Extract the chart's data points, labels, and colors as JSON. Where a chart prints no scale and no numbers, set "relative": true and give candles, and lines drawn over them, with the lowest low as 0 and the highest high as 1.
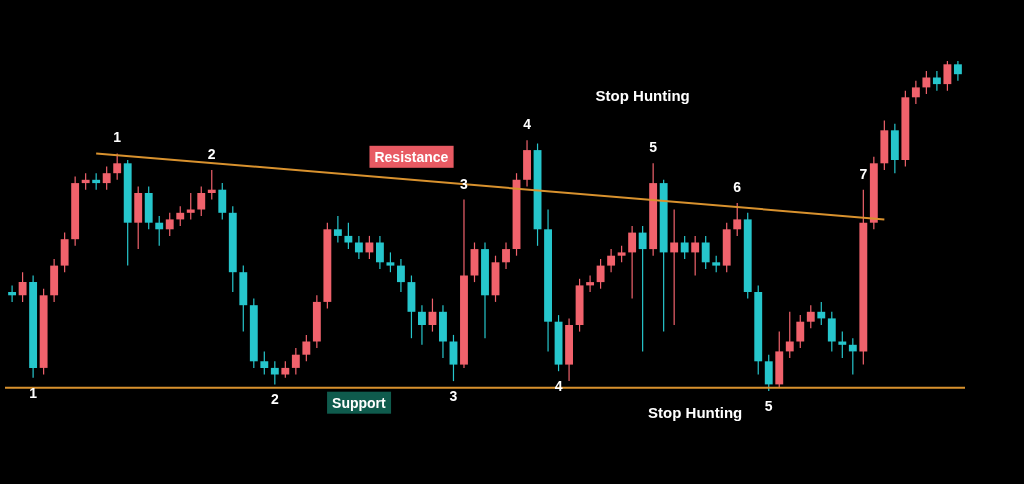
{
  "chart_data": {
    "type": "candlestick",
    "relative": true,
    "categories": [
      null,
      null,
      null,
      null,
      null,
      null,
      null,
      null,
      null,
      null,
      null,
      null,
      null,
      null,
      null,
      null,
      null,
      null,
      null,
      null,
      null,
      null,
      null,
      null,
      null,
      null,
      null,
      null,
      null,
      null,
      null,
      null,
      null,
      null,
      null,
      null,
      null,
      null,
      null,
      null,
      null,
      null,
      null,
      null,
      null,
      null,
      null,
      null,
      null,
      null,
      null,
      null,
      null,
      null,
      null,
      null,
      null,
      null,
      null,
      null,
      null,
      null,
      null,
      null,
      null,
      null,
      null,
      null,
      null,
      null,
      null,
      null,
      null,
      null,
      null,
      null,
      null,
      null,
      null,
      null,
      null,
      null,
      null,
      null,
      null,
      null,
      null,
      null,
      null,
      null,
      null
    ],
    "ohlc": [
      [
        0.3,
        0.32,
        0.27,
        0.29
      ],
      [
        0.29,
        0.36,
        0.27,
        0.33
      ],
      [
        0.33,
        0.35,
        0.04,
        0.07
      ],
      [
        0.07,
        0.31,
        0.05,
        0.29
      ],
      [
        0.29,
        0.4,
        0.27,
        0.38
      ],
      [
        0.38,
        0.48,
        0.36,
        0.46
      ],
      [
        0.46,
        0.65,
        0.44,
        0.63
      ],
      [
        0.63,
        0.66,
        0.61,
        0.64
      ],
      [
        0.64,
        0.66,
        0.61,
        0.63
      ],
      [
        0.63,
        0.68,
        0.61,
        0.66
      ],
      [
        0.66,
        0.72,
        0.64,
        0.69
      ],
      [
        0.69,
        0.7,
        0.38,
        0.51
      ],
      [
        0.51,
        0.62,
        0.43,
        0.6
      ],
      [
        0.6,
        0.62,
        0.49,
        0.51
      ],
      [
        0.51,
        0.53,
        0.44,
        0.49
      ],
      [
        0.49,
        0.54,
        0.47,
        0.52
      ],
      [
        0.52,
        0.56,
        0.5,
        0.54
      ],
      [
        0.54,
        0.6,
        0.52,
        0.55
      ],
      [
        0.55,
        0.62,
        0.53,
        0.6
      ],
      [
        0.6,
        0.67,
        0.58,
        0.61
      ],
      [
        0.61,
        0.63,
        0.52,
        0.54
      ],
      [
        0.54,
        0.56,
        0.3,
        0.36
      ],
      [
        0.36,
        0.38,
        0.18,
        0.26
      ],
      [
        0.26,
        0.28,
        0.07,
        0.09
      ],
      [
        0.09,
        0.12,
        0.05,
        0.07
      ],
      [
        0.07,
        0.09,
        0.02,
        0.05
      ],
      [
        0.05,
        0.09,
        0.04,
        0.07
      ],
      [
        0.07,
        0.13,
        0.05,
        0.11
      ],
      [
        0.11,
        0.17,
        0.09,
        0.15
      ],
      [
        0.15,
        0.29,
        0.13,
        0.27
      ],
      [
        0.27,
        0.51,
        0.25,
        0.49
      ],
      [
        0.49,
        0.53,
        0.45,
        0.47
      ],
      [
        0.47,
        0.51,
        0.43,
        0.45
      ],
      [
        0.45,
        0.47,
        0.4,
        0.42
      ],
      [
        0.42,
        0.47,
        0.4,
        0.45
      ],
      [
        0.45,
        0.47,
        0.37,
        0.39
      ],
      [
        0.39,
        0.42,
        0.36,
        0.38
      ],
      [
        0.38,
        0.4,
        0.3,
        0.33
      ],
      [
        0.33,
        0.35,
        0.16,
        0.24
      ],
      [
        0.24,
        0.26,
        0.14,
        0.2
      ],
      [
        0.2,
        0.28,
        0.18,
        0.24
      ],
      [
        0.24,
        0.26,
        0.1,
        0.15
      ],
      [
        0.15,
        0.17,
        0.03,
        0.08
      ],
      [
        0.08,
        0.58,
        0.07,
        0.35
      ],
      [
        0.35,
        0.45,
        0.33,
        0.43
      ],
      [
        0.43,
        0.45,
        0.16,
        0.29
      ],
      [
        0.29,
        0.41,
        0.27,
        0.39
      ],
      [
        0.39,
        0.45,
        0.37,
        0.43
      ],
      [
        0.43,
        0.66,
        0.41,
        0.64
      ],
      [
        0.64,
        0.76,
        0.62,
        0.73
      ],
      [
        0.73,
        0.75,
        0.44,
        0.49
      ],
      [
        0.49,
        0.55,
        0.12,
        0.21
      ],
      [
        0.21,
        0.23,
        0.06,
        0.08
      ],
      [
        0.08,
        0.22,
        0.03,
        0.2
      ],
      [
        0.2,
        0.34,
        0.18,
        0.32
      ],
      [
        0.32,
        0.35,
        0.3,
        0.33
      ],
      [
        0.33,
        0.4,
        0.31,
        0.38
      ],
      [
        0.38,
        0.43,
        0.36,
        0.41
      ],
      [
        0.41,
        0.44,
        0.39,
        0.42
      ],
      [
        0.42,
        0.5,
        0.28,
        0.48
      ],
      [
        0.48,
        0.5,
        0.12,
        0.43
      ],
      [
        0.43,
        0.69,
        0.41,
        0.63
      ],
      [
        0.63,
        0.64,
        0.18,
        0.42
      ],
      [
        0.42,
        0.55,
        0.2,
        0.45
      ],
      [
        0.45,
        0.47,
        0.4,
        0.42
      ],
      [
        0.42,
        0.47,
        0.35,
        0.45
      ],
      [
        0.45,
        0.47,
        0.37,
        0.39
      ],
      [
        0.39,
        0.41,
        0.36,
        0.38
      ],
      [
        0.38,
        0.51,
        0.36,
        0.49
      ],
      [
        0.49,
        0.57,
        0.47,
        0.52
      ],
      [
        0.52,
        0.54,
        0.28,
        0.3
      ],
      [
        0.3,
        0.32,
        0.05,
        0.09
      ],
      [
        0.09,
        0.11,
        0.0,
        0.02
      ],
      [
        0.02,
        0.18,
        0.01,
        0.12
      ],
      [
        0.12,
        0.24,
        0.1,
        0.15
      ],
      [
        0.15,
        0.23,
        0.13,
        0.21
      ],
      [
        0.21,
        0.26,
        0.19,
        0.24
      ],
      [
        0.24,
        0.27,
        0.2,
        0.22
      ],
      [
        0.22,
        0.24,
        0.12,
        0.15
      ],
      [
        0.15,
        0.18,
        0.1,
        0.14
      ],
      [
        0.14,
        0.16,
        0.05,
        0.12
      ],
      [
        0.12,
        0.61,
        0.08,
        0.51
      ],
      [
        0.51,
        0.71,
        0.49,
        0.69
      ],
      [
        0.69,
        0.82,
        0.67,
        0.79
      ],
      [
        0.79,
        0.81,
        0.66,
        0.7
      ],
      [
        0.7,
        0.91,
        0.68,
        0.89
      ],
      [
        0.89,
        0.94,
        0.87,
        0.92
      ],
      [
        0.92,
        0.97,
        0.9,
        0.95
      ],
      [
        0.95,
        0.97,
        0.91,
        0.93
      ],
      [
        0.93,
        1.0,
        0.91,
        0.99
      ],
      [
        0.99,
        1.0,
        0.94,
        0.96
      ]
    ],
    "series": [
      {
        "type": "line",
        "name": "Resistance",
        "color": "#d9922e",
        "values": [
          null,
          null,
          null,
          null,
          null,
          null,
          null,
          null,
          0.72,
          null,
          null,
          null,
          null,
          null,
          null,
          null,
          null,
          null,
          null,
          null,
          null,
          null,
          null,
          null,
          null,
          null,
          null,
          null,
          null,
          null,
          null,
          null,
          null,
          null,
          null,
          null,
          null,
          null,
          null,
          null,
          null,
          null,
          null,
          null,
          null,
          null,
          null,
          null,
          null,
          null,
          null,
          null,
          null,
          null,
          null,
          null,
          null,
          null,
          null,
          null,
          null,
          null,
          null,
          null,
          null,
          null,
          null,
          null,
          null,
          null,
          null,
          null,
          null,
          null,
          null,
          null,
          null,
          null,
          null,
          null,
          null,
          null,
          null,
          0.52,
          null,
          null,
          null,
          null,
          null,
          null,
          null
        ]
      }
    ],
    "ref_lines": [
      {
        "axis": "y",
        "value": 0.01,
        "label": "Support",
        "color": "#d9922e"
      }
    ],
    "annotations": [
      {
        "text": "1",
        "y": 0.72
      },
      {
        "text": "2",
        "y": 0.67
      },
      {
        "text": "3",
        "y": 0.58
      },
      {
        "text": "4",
        "y": 0.76
      },
      "Stop Hunting",
      {
        "text": "5",
        "y": 0.69
      },
      {
        "text": "6",
        "y": 0.57
      },
      {
        "text": "7",
        "y": 0.61
      },
      {
        "text": "1",
        "y": 0.04
      },
      {
        "text": "2",
        "y": 0.02
      },
      {
        "text": "3",
        "y": 0.03
      },
      {
        "text": "4",
        "y": 0.06
      },
      {
        "text": "5",
        "y": 0.0
      },
      "Stop Hunting"
    ]
  }
}
